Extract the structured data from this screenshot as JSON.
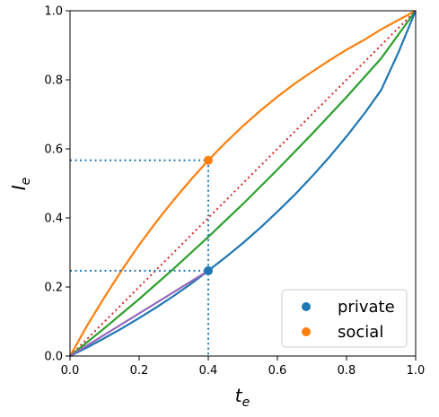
{
  "chart_data": {
    "type": "line",
    "xlabel": "t",
    "xlabel_sub": "e",
    "ylabel": "I",
    "ylabel_sub": "e",
    "xlim": [
      0.0,
      1.0
    ],
    "ylim": [
      0.0,
      1.0
    ],
    "x_ticks": [
      "0.0",
      "0.2",
      "0.4",
      "0.6",
      "0.8",
      "1.0"
    ],
    "y_ticks": [
      "0.0",
      "0.2",
      "0.4",
      "0.6",
      "0.8",
      "1.0"
    ],
    "grid": false,
    "legend_position": "bottom-right",
    "curves": [
      {
        "color": "#ff7f0e",
        "style": "solid",
        "x": [
          0,
          0.05,
          0.1,
          0.15,
          0.2,
          0.25,
          0.3,
          0.35,
          0.4,
          0.45,
          0.5,
          0.55,
          0.6,
          0.65,
          0.7,
          0.75,
          0.8,
          0.85,
          0.9,
          0.95,
          1.0
        ],
        "y": [
          0,
          0.089,
          0.171,
          0.249,
          0.322,
          0.389,
          0.452,
          0.511,
          0.567,
          0.618,
          0.666,
          0.71,
          0.751,
          0.789,
          0.823,
          0.856,
          0.887,
          0.915,
          0.946,
          0.973,
          1.0
        ]
      },
      {
        "color": "#d62728",
        "style": "dotted",
        "x": [
          0,
          1
        ],
        "y": [
          0,
          1
        ]
      },
      {
        "color": "#2ca02c",
        "style": "solid",
        "x": [
          0,
          0.1,
          0.2,
          0.3,
          0.4,
          0.5,
          0.6,
          0.7,
          0.8,
          0.9,
          1.0
        ],
        "y": [
          0,
          0.081,
          0.165,
          0.253,
          0.345,
          0.44,
          0.54,
          0.643,
          0.75,
          0.862,
          1.0
        ]
      },
      {
        "color": "#1f77b4",
        "style": "solid",
        "x": [
          0,
          0.05,
          0.1,
          0.15,
          0.2,
          0.25,
          0.3,
          0.35,
          0.4,
          0.45,
          0.5,
          0.55,
          0.6,
          0.65,
          0.7,
          0.75,
          0.8,
          0.85,
          0.9,
          0.95,
          1.0
        ],
        "y": [
          0,
          0.025,
          0.052,
          0.08,
          0.11,
          0.141,
          0.174,
          0.209,
          0.247,
          0.286,
          0.327,
          0.371,
          0.418,
          0.467,
          0.52,
          0.576,
          0.636,
          0.7,
          0.77,
          0.879,
          1.0
        ]
      },
      {
        "color": "#9467bd",
        "style": "solid",
        "x": [
          0,
          0.4
        ],
        "y": [
          0,
          0.247
        ]
      }
    ],
    "guides": [
      {
        "color": "#1f77b4",
        "style": "dotted",
        "x": [
          0,
          0.4,
          0.4
        ],
        "y": [
          0.567,
          0.567,
          0
        ]
      },
      {
        "color": "#1f77b4",
        "style": "dotted",
        "x": [
          0,
          0.4
        ],
        "y": [
          0.247,
          0.247
        ]
      }
    ],
    "points": [
      {
        "series": "private",
        "x": 0.4,
        "y": 0.247,
        "color": "#1f77b4"
      },
      {
        "series": "social",
        "x": 0.4,
        "y": 0.567,
        "color": "#ff7f0e"
      }
    ],
    "legend": [
      {
        "label": "private",
        "color": "#1f77b4"
      },
      {
        "label": "social",
        "color": "#ff7f0e"
      }
    ]
  }
}
